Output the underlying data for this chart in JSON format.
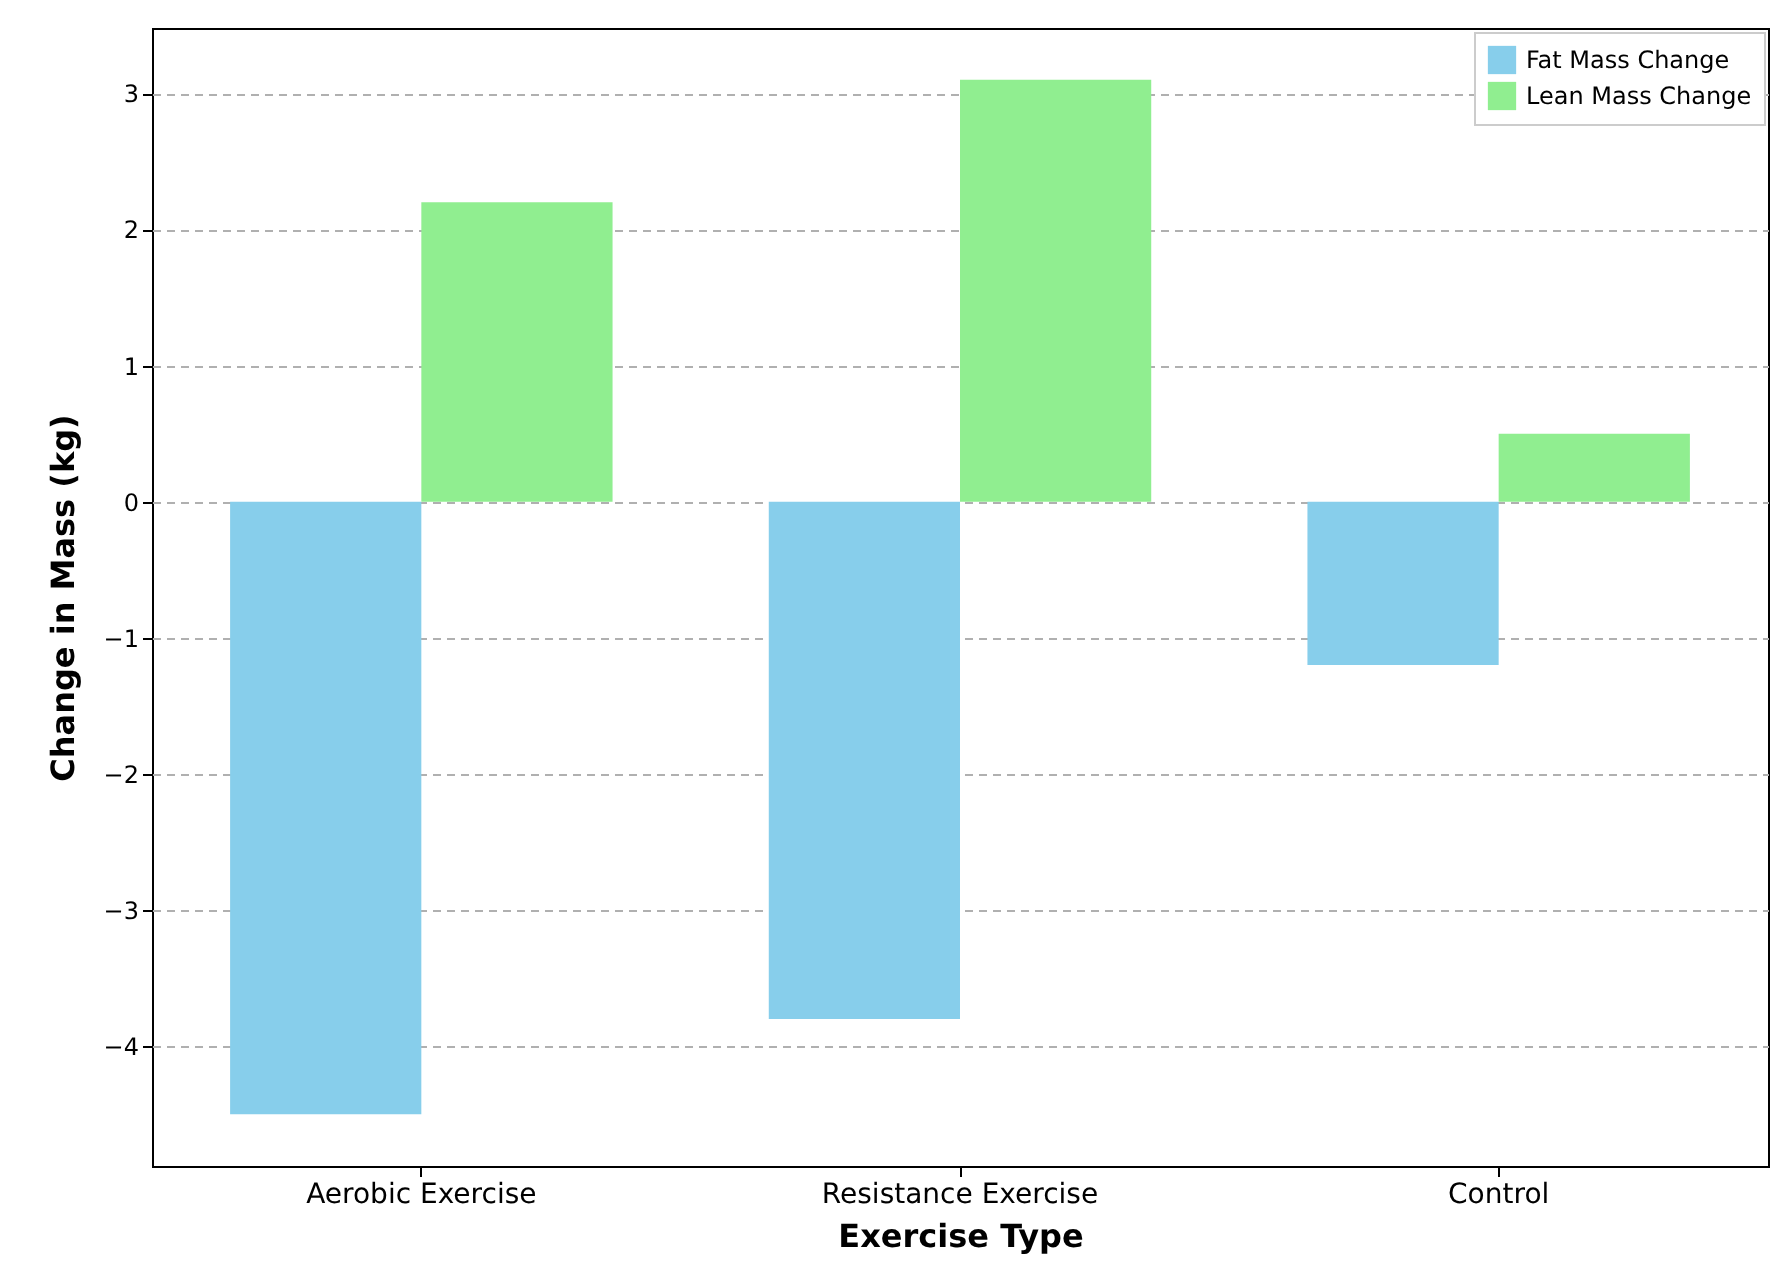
{
  "chart_data": {
    "type": "bar",
    "xlabel": "Exercise Type",
    "ylabel": "Change in Mass (kg)",
    "categories": [
      "Aerobic Exercise",
      "Resistance Exercise",
      "Control"
    ],
    "series": [
      {
        "name": "Fat Mass Change",
        "color": "#87ceeb",
        "values": [
          -4.5,
          -3.8,
          -1.2
        ]
      },
      {
        "name": "Lean Mass Change",
        "color": "#90ee90",
        "values": [
          2.2,
          3.1,
          0.5
        ]
      }
    ],
    "ylim": [
      -4.88,
      3.48
    ],
    "yticks": [
      -4,
      -3,
      -2,
      -1,
      0,
      1,
      2,
      3
    ],
    "grid": "y",
    "legend": "top right"
  }
}
